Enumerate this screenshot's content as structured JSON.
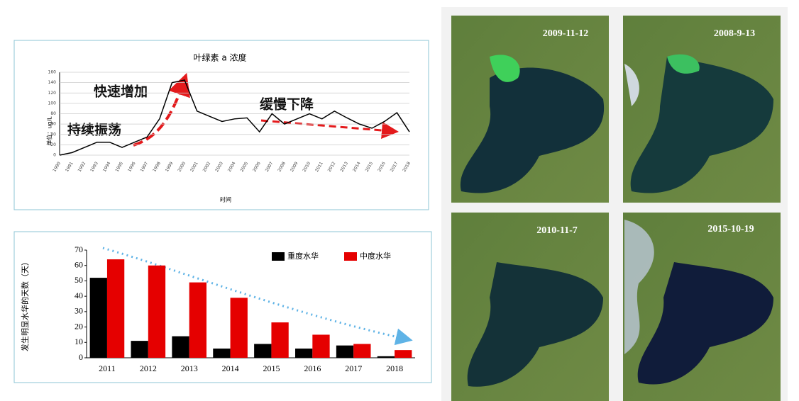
{
  "chart_data": [
    {
      "type": "line",
      "title": "叶绿素 a 浓度",
      "y_label": "单位：ug/L",
      "x_label": "时间",
      "categories": [
        "1990",
        "1991",
        "1992",
        "1993",
        "1994",
        "1995",
        "1996",
        "1997",
        "1998",
        "1999",
        "2000",
        "2001",
        "2002",
        "2003",
        "2004",
        "2005",
        "2006",
        "2007",
        "2008",
        "2009",
        "2010",
        "2011",
        "2012",
        "2013",
        "2014",
        "2015",
        "2016",
        "2017",
        "2018"
      ],
      "values": [
        0,
        5,
        15,
        25,
        25,
        15,
        25,
        35,
        70,
        140,
        145,
        85,
        75,
        65,
        70,
        72,
        45,
        80,
        60,
        70,
        80,
        70,
        85,
        72,
        60,
        52,
        65,
        82,
        45
      ],
      "color": "#000000",
      "ylim": [
        0,
        160
      ],
      "yticks": [
        0,
        20,
        40,
        60,
        80,
        100,
        120,
        140,
        160
      ],
      "grid": true,
      "annotations": [
        "快速增加",
        "持续振荡",
        "缓慢下降"
      ]
    },
    {
      "type": "bar",
      "y_label": "发生明显水华的天数（天）",
      "categories": [
        "2011",
        "2012",
        "2013",
        "2014",
        "2015",
        "2016",
        "2017",
        "2018"
      ],
      "series": [
        {
          "name": "重度水华",
          "color": "#000000",
          "values": [
            52,
            11,
            14,
            6,
            9,
            6,
            8,
            1
          ]
        },
        {
          "name": "中度水华",
          "color": "#e50000",
          "values": [
            64,
            60,
            49,
            39,
            23,
            15,
            9,
            5
          ]
        }
      ],
      "ylim": [
        0,
        70
      ],
      "yticks": [
        0,
        10,
        20,
        30,
        40,
        50,
        60,
        70
      ],
      "grid": false
    }
  ],
  "satellite_images": [
    {
      "label": "2009-11-12"
    },
    {
      "label": "2008-9-13"
    },
    {
      "label": "2010-11-7"
    },
    {
      "label": "2015-10-19"
    }
  ]
}
